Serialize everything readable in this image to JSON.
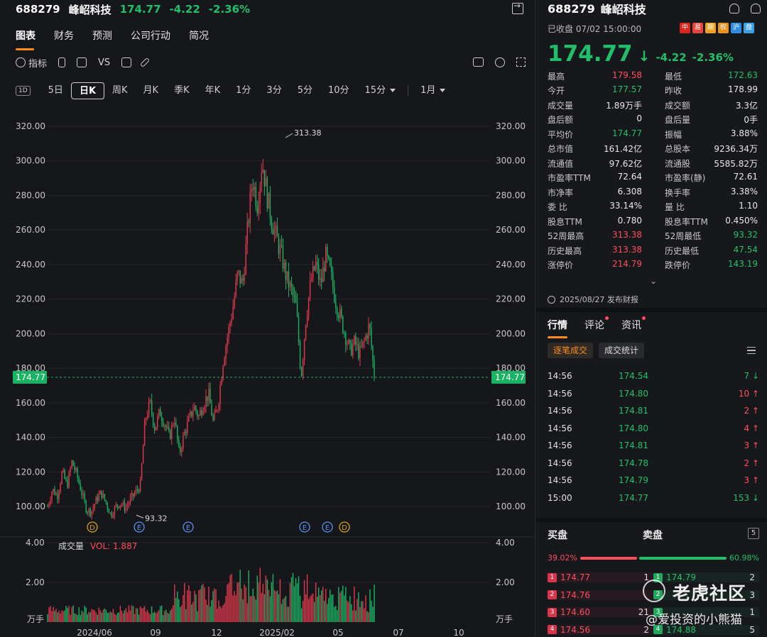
{
  "header": {
    "code": "688279",
    "name": "峰岹科技",
    "price": "174.77",
    "change": "-4.22",
    "pct": "-2.36%"
  },
  "tabs": [
    "图表",
    "财务",
    "预测",
    "公司行动",
    "简况"
  ],
  "toolbar": {
    "indicator": "指标",
    "vs": "VS"
  },
  "periods": {
    "day_icon": "1D",
    "items": [
      "5日",
      "日K",
      "周K",
      "月K",
      "季K",
      "年K",
      "1分",
      "3分",
      "5分",
      "10分",
      "15分"
    ],
    "active": "日K",
    "range": "1月"
  },
  "chart_data": {
    "type": "candlestick",
    "y_ticks": [
      "320.00",
      "300.00",
      "280.00",
      "260.00",
      "240.00",
      "220.00",
      "200.00",
      "180.00",
      "160.00",
      "140.00",
      "120.00",
      "100.00"
    ],
    "ylim": [
      88,
      326
    ],
    "x_ticks": [
      "2024/06",
      "09",
      "12",
      "2025/02",
      "05",
      "07",
      "10"
    ],
    "current_price": "174.77",
    "high_label": "313.38",
    "low_label": "93.32",
    "event_markers": [
      "D",
      "E",
      "E",
      "E",
      "E",
      "D"
    ],
    "close_path": [
      [
        "2024/05",
        100
      ],
      [
        "2024/05",
        110
      ],
      [
        "2024/06",
        106
      ],
      [
        "2024/06",
        120
      ],
      [
        "2024/06",
        112
      ],
      [
        "2024/06",
        126
      ],
      [
        "2024/07",
        118
      ],
      [
        "2024/07",
        108
      ],
      [
        "2024/07",
        98
      ],
      [
        "2024/07",
        97
      ],
      [
        "2024/07",
        104
      ],
      [
        "2024/08",
        108
      ],
      [
        "2024/08",
        102
      ],
      [
        "2024/08",
        95
      ],
      [
        "2024/08",
        100
      ],
      [
        "2024/09",
        102
      ],
      [
        "2024/09",
        99
      ],
      [
        "2024/09",
        104
      ],
      [
        "2024/09",
        108
      ],
      [
        "2024/09",
        112
      ],
      [
        "2024/10",
        150
      ],
      [
        "2024/10",
        160
      ],
      [
        "2024/10",
        145
      ],
      [
        "2024/10",
        155
      ],
      [
        "2024/10",
        148
      ],
      [
        "2024/11",
        140
      ],
      [
        "2024/11",
        152
      ],
      [
        "2024/11",
        130
      ],
      [
        "2024/11",
        142
      ],
      [
        "2024/11",
        150
      ],
      [
        "2024/12",
        158
      ],
      [
        "2024/12",
        152
      ],
      [
        "2024/12",
        160
      ],
      [
        "2024/12",
        165
      ],
      [
        "2024/12",
        148
      ],
      [
        "2025/01",
        160
      ],
      [
        "2025/01",
        185
      ],
      [
        "2025/01",
        200
      ],
      [
        "2025/01",
        215
      ],
      [
        "2025/01",
        235
      ],
      [
        "2025/02",
        228
      ],
      [
        "2025/02",
        260
      ],
      [
        "2025/02",
        290
      ],
      [
        "2025/02",
        275
      ],
      [
        "2025/02",
        300
      ],
      [
        "2025/02",
        280
      ],
      [
        "2025/02",
        265
      ],
      [
        "2025/03",
        255
      ],
      [
        "2025/03",
        245
      ],
      [
        "2025/03",
        232
      ],
      [
        "2025/03",
        225
      ],
      [
        "2025/03",
        215
      ],
      [
        "2025/04",
        175
      ],
      [
        "2025/04",
        210
      ],
      [
        "2025/04",
        230
      ],
      [
        "2025/04",
        240
      ],
      [
        "2025/04",
        228
      ],
      [
        "2025/05",
        245
      ],
      [
        "2025/05",
        235
      ],
      [
        "2025/05",
        220
      ],
      [
        "2025/05",
        210
      ],
      [
        "2025/05",
        200
      ],
      [
        "2025/06",
        190
      ],
      [
        "2025/06",
        195
      ],
      [
        "2025/06",
        188
      ],
      [
        "2025/06",
        196
      ],
      [
        "2025/06",
        205
      ],
      [
        "2025/07",
        174.77
      ]
    ],
    "volume": {
      "label": "成交量",
      "vol": "VOL: 1.887",
      "y_ticks": [
        "4.00",
        "2.00"
      ],
      "unit": "万手",
      "ylim": [
        0,
        4
      ]
    }
  },
  "quote": {
    "code": "688279",
    "name": "峰岹科技",
    "status": "已收盘 07/02 15:00:00",
    "price": "174.77",
    "change": "-4.22",
    "pct": "-2.36%",
    "flags": [
      "中",
      "易",
      "期",
      "权",
      "沪",
      "盘"
    ],
    "stats": [
      [
        [
          "最高",
          "179.58",
          "up"
        ],
        [
          "最低",
          "172.63",
          "dn"
        ]
      ],
      [
        [
          "今开",
          "177.57",
          "dn"
        ],
        [
          "昨收",
          "178.99",
          ""
        ]
      ],
      [
        [
          "成交量",
          "1.89万手",
          ""
        ],
        [
          "成交额",
          "3.3亿",
          ""
        ]
      ],
      [
        [
          "盘后额",
          "0",
          ""
        ],
        [
          "盘后量",
          "0手",
          ""
        ]
      ],
      [
        [
          "平均价",
          "174.77",
          "dn"
        ],
        [
          "振幅",
          "3.88%",
          ""
        ]
      ],
      [
        [
          "总市值",
          "161.42亿",
          ""
        ],
        [
          "总股本",
          "9236.34万",
          ""
        ]
      ],
      [
        [
          "流通值",
          "97.62亿",
          ""
        ],
        [
          "流通股",
          "5585.82万",
          ""
        ]
      ],
      [
        [
          "市盈率TTM",
          "72.64",
          ""
        ],
        [
          "市盈率(静)",
          "72.61",
          ""
        ]
      ],
      [
        [
          "市净率",
          "6.308",
          ""
        ],
        [
          "换手率",
          "3.38%",
          ""
        ]
      ],
      [
        [
          "委 比",
          "33.14%",
          ""
        ],
        [
          "量 比",
          "1.10",
          ""
        ]
      ],
      [
        [
          "股息TTM",
          "0.780",
          ""
        ],
        [
          "股息率TTM",
          "0.450%",
          ""
        ]
      ],
      [
        [
          "52周最高",
          "313.38",
          "up"
        ],
        [
          "52周最低",
          "93.32",
          "dn"
        ]
      ],
      [
        [
          "历史最高",
          "313.38",
          "up"
        ],
        [
          "历史最低",
          "47.54",
          "dn"
        ]
      ],
      [
        [
          "涨停价",
          "214.79",
          "up"
        ],
        [
          "跌停价",
          "143.19",
          "dn"
        ]
      ]
    ],
    "report": "2025/08/27 发布财报"
  },
  "detail_tabs": [
    "行情",
    "评论",
    "资讯"
  ],
  "chips": [
    "逐笔成交",
    "成交统计"
  ],
  "trades": [
    [
      "14:56",
      "174.54",
      "7",
      "sell"
    ],
    [
      "14:56",
      "174.80",
      "10",
      "buy"
    ],
    [
      "14:56",
      "174.81",
      "2",
      "buy"
    ],
    [
      "14:56",
      "174.80",
      "4",
      "buy"
    ],
    [
      "14:56",
      "174.81",
      "3",
      "buy"
    ],
    [
      "14:56",
      "174.78",
      "2",
      "buy"
    ],
    [
      "14:56",
      "174.79",
      "3",
      "buy"
    ],
    [
      "15:00",
      "174.77",
      "153",
      "sell"
    ]
  ],
  "book": {
    "buy_label": "买盘",
    "sell_label": "卖盘",
    "levels": "5",
    "buy_pct": "39.02%",
    "sell_pct": "60.98%",
    "buy_ratio": 0.3902,
    "rows": [
      [
        "1",
        "174.77",
        "1",
        "1",
        "174.79",
        "2"
      ],
      [
        "2",
        "174.76",
        "",
        "2",
        "",
        "3"
      ],
      [
        "3",
        "174.60",
        "21",
        "3",
        "",
        "1"
      ],
      [
        "4",
        "174.56",
        "2",
        "4",
        "174.88",
        "5"
      ]
    ]
  },
  "watermark": {
    "title": "老虎社区",
    "user": "@爱投资的小熊猫"
  }
}
